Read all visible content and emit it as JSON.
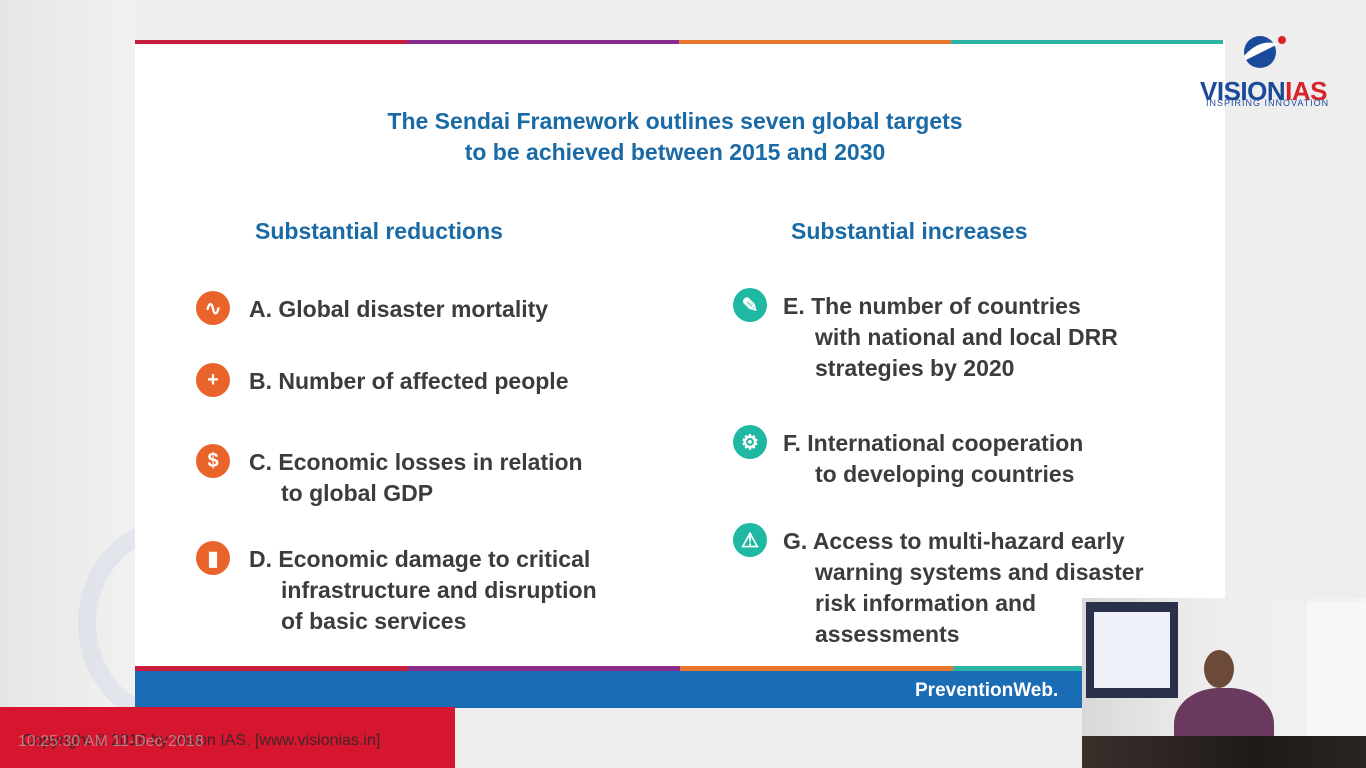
{
  "slide": {
    "title_line1": "The Sendai Framework outlines seven global targets",
    "title_line2": "to be achieved between 2015 and 2030",
    "left_heading": "Substantial reductions",
    "right_heading": "Substantial increases",
    "left_items": [
      {
        "icon": "heartbeat-icon",
        "glyph": "∿",
        "lines": [
          "A. Global disaster mortality"
        ]
      },
      {
        "icon": "plus-icon",
        "glyph": "+",
        "lines": [
          "B. Number of affected people"
        ]
      },
      {
        "icon": "dollar-icon",
        "glyph": "$",
        "lines": [
          "C. Economic losses in relation",
          "to global GDP"
        ]
      },
      {
        "icon": "infrastructure-icon",
        "glyph": "▮",
        "lines": [
          "D. Economic damage to critical",
          "infrastructure and disruption",
          "of basic services"
        ]
      }
    ],
    "right_items": [
      {
        "icon": "pencil-icon",
        "glyph": "✎",
        "lines": [
          "E. The number of countries",
          "with national and local DRR",
          "strategies by 2020"
        ]
      },
      {
        "icon": "cooperation-icon",
        "glyph": "⚙",
        "lines": [
          "F. International cooperation",
          "to developing countries"
        ]
      },
      {
        "icon": "warning-signal-icon",
        "glyph": "⚠",
        "lines": [
          "G. Access to multi-hazard early",
          "warning systems and disaster",
          "risk information and",
          "assessments"
        ]
      }
    ],
    "footer_source": "PreventionWeb."
  },
  "brand": {
    "logo_part1": "VISION",
    "logo_part2": "IAS",
    "tagline": "INSPIRING INNOVATION"
  },
  "overlay": {
    "copyright": "Copyright © 2016 by Vision IAS. [www.visionias.in]",
    "timestamp": "10:25:30 AM 11-Dec-2018"
  },
  "colors": {
    "title_blue": "#1a6aa6",
    "reduction_orange": "#e8642a",
    "increase_teal": "#1fb8a2",
    "copyright_red": "#d6162f",
    "band_blue": "#1a6cb5"
  }
}
